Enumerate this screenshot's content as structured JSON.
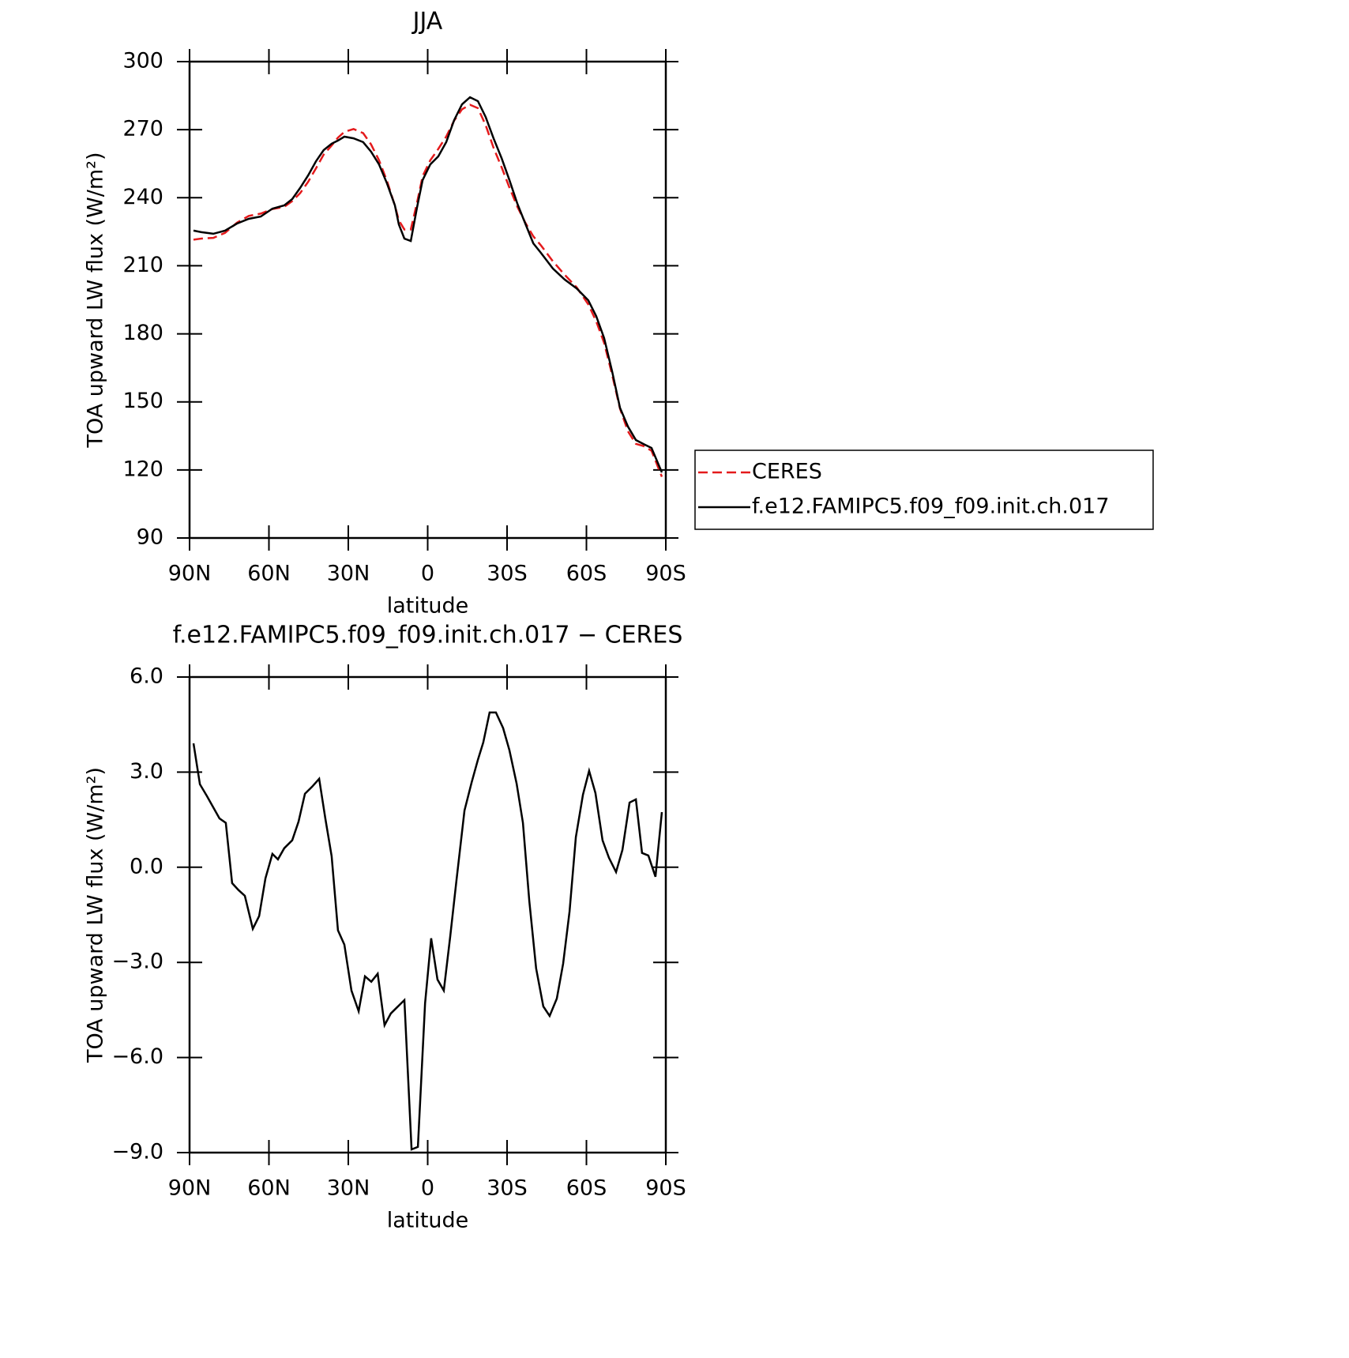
{
  "chart_data": [
    {
      "type": "line",
      "title": "JJA",
      "xlabel": "latitude",
      "ylabel": "TOA upward LW flux (W/m²)",
      "x": [
        88.5,
        85.5,
        81.0,
        76.6,
        72.1,
        67.6,
        63.1,
        58.7,
        54.2,
        51.2,
        48.2,
        45.2,
        42.2,
        39.3,
        36.3,
        33.9,
        31.5,
        28.0,
        24.4,
        21.4,
        18.4,
        15.4,
        12.4,
        10.9,
        8.8,
        6.4,
        4.0,
        1.9,
        -1.0,
        -4.0,
        -7.0,
        -10.0,
        -13.0,
        -16.0,
        -19.0,
        -21.9,
        -24.9,
        -27.9,
        -30.9,
        -33.9,
        -36.9,
        -39.9,
        -42.8,
        -47.3,
        -51.8,
        -56.3,
        -60.7,
        -63.7,
        -66.7,
        -69.7,
        -72.7,
        -75.7,
        -78.7,
        -81.6,
        -84.6,
        -88.5
      ],
      "series": [
        {
          "name": "CERES",
          "color": "#e41a1c",
          "line_style": "dashed",
          "values": [
            221.5,
            222,
            222.3,
            224.5,
            229,
            232,
            233,
            235,
            236,
            238.5,
            242,
            247,
            253,
            259,
            263,
            266.5,
            269,
            270.3,
            268.5,
            263.5,
            256.5,
            247.5,
            236.5,
            230,
            226,
            226,
            238,
            249.5,
            256.5,
            261.5,
            267,
            274,
            279,
            281,
            279.5,
            272,
            262,
            253.5,
            244.5,
            236,
            229,
            223,
            219,
            212,
            206,
            200.5,
            193,
            185.5,
            176,
            162,
            147,
            137,
            131.5,
            130.5,
            128.5,
            117
          ]
        },
        {
          "name": "f.e12.FAMIPC5.f09_f09.init.ch.017",
          "color": "#000000",
          "line_style": "solid",
          "values": [
            225.5,
            224.8,
            224.1,
            225.5,
            228.6,
            230.7,
            231.7,
            235.2,
            236.6,
            239.4,
            244.3,
            249.8,
            256.1,
            261.0,
            263.8,
            265.2,
            266.9,
            266.2,
            264.5,
            260.3,
            254.7,
            246.4,
            236.6,
            228.2,
            222.0,
            220.9,
            235.9,
            247.8,
            254.7,
            258.2,
            264.5,
            274.2,
            281.2,
            284.3,
            282.6,
            275.6,
            266.2,
            257.5,
            247.8,
            237.3,
            228.6,
            219.9,
            215.7,
            208.8,
            203.9,
            200.0,
            194.8,
            187.8,
            178.1,
            163.5,
            147.4,
            139.1,
            133.2,
            131.4,
            129.7,
            118.9
          ]
        }
      ],
      "xlim": [
        90,
        -90
      ],
      "xticks": [
        {
          "value": 90,
          "label": "90N"
        },
        {
          "value": 60,
          "label": "60N"
        },
        {
          "value": 30,
          "label": "30N"
        },
        0,
        {
          "value": -30,
          "label": "30S"
        },
        {
          "value": -60,
          "label": "60S"
        },
        {
          "value": -90,
          "label": "90S"
        }
      ],
      "ylim": [
        90,
        300
      ],
      "yticks": [
        90,
        120,
        150,
        180,
        210,
        240,
        270,
        300
      ],
      "legend": "right"
    },
    {
      "type": "line",
      "title": "f.e12.FAMIPC5.f09_f09.init.ch.017 − CERES",
      "xlabel": "latitude",
      "ylabel": "TOA upward LW flux (W/m²)",
      "x": [
        88.5,
        86.1,
        83.4,
        78.7,
        76.3,
        73.9,
        71.5,
        69.1,
        66.1,
        63.7,
        61.3,
        58.7,
        56.6,
        54.2,
        51.2,
        48.8,
        46.4,
        43.7,
        41.0,
        38.7,
        36.3,
        33.9,
        31.5,
        28.8,
        26.1,
        23.7,
        21.3,
        18.9,
        16.3,
        13.9,
        11.5,
        8.8,
        6.1,
        3.7,
        1.0,
        -1.3,
        -3.7,
        -6.1,
        -8.5,
        -10.9,
        -13.9,
        -16.6,
        -19.0,
        -21.0,
        -23.4,
        -25.8,
        -28.5,
        -30.9,
        -33.6,
        -36.0,
        -38.4,
        -41.0,
        -43.7,
        -46.1,
        -48.8,
        -51.2,
        -53.6,
        -56.0,
        -58.7,
        -61.0,
        -63.4,
        -66.1,
        -68.5,
        -71.2,
        -73.6,
        -76.3,
        -78.7,
        -81.0,
        -83.4,
        -86.1,
        -88.5
      ],
      "series": [
        {
          "color": "#000000",
          "line_style": "solid",
          "values": [
            3.91,
            2.62,
            2.24,
            1.54,
            1.4,
            -0.5,
            -0.72,
            -0.9,
            -1.94,
            -1.54,
            -0.35,
            0.42,
            0.25,
            0.6,
            0.85,
            1.44,
            2.32,
            2.54,
            2.79,
            1.54,
            0.35,
            -1.99,
            -2.44,
            -3.89,
            -4.54,
            -3.44,
            -3.61,
            -3.36,
            -4.98,
            -4.61,
            -4.41,
            -4.19,
            -8.9,
            -8.82,
            -4.29,
            -2.24,
            -3.54,
            -3.89,
            -2.19,
            -0.4,
            1.79,
            2.67,
            3.39,
            3.94,
            4.88,
            4.88,
            4.39,
            3.69,
            2.64,
            1.4,
            -1.05,
            -3.19,
            -4.39,
            -4.69,
            -4.14,
            -3.04,
            -1.4,
            0.95,
            2.29,
            3.04,
            2.34,
            0.85,
            0.3,
            -0.15,
            0.55,
            2.04,
            2.14,
            0.45,
            0.37,
            -0.3,
            1.74
          ]
        }
      ],
      "xlim": [
        90,
        -90
      ],
      "xticks": [
        {
          "value": 90,
          "label": "90N"
        },
        {
          "value": 60,
          "label": "60N"
        },
        {
          "value": 30,
          "label": "30N"
        },
        0,
        {
          "value": -30,
          "label": "30S"
        },
        {
          "value": -60,
          "label": "60S"
        },
        {
          "value": -90,
          "label": "90S"
        }
      ],
      "ylim": [
        -9,
        6
      ],
      "yticks": [
        {
          "value": -9,
          "label": "−9.0"
        },
        {
          "value": -6,
          "label": "−6.0"
        },
        {
          "value": -3,
          "label": "−3.0"
        },
        {
          "value": 0,
          "label": "0.0"
        },
        {
          "value": 3,
          "label": "3.0"
        },
        {
          "value": 6,
          "label": "6.0"
        }
      ]
    }
  ]
}
